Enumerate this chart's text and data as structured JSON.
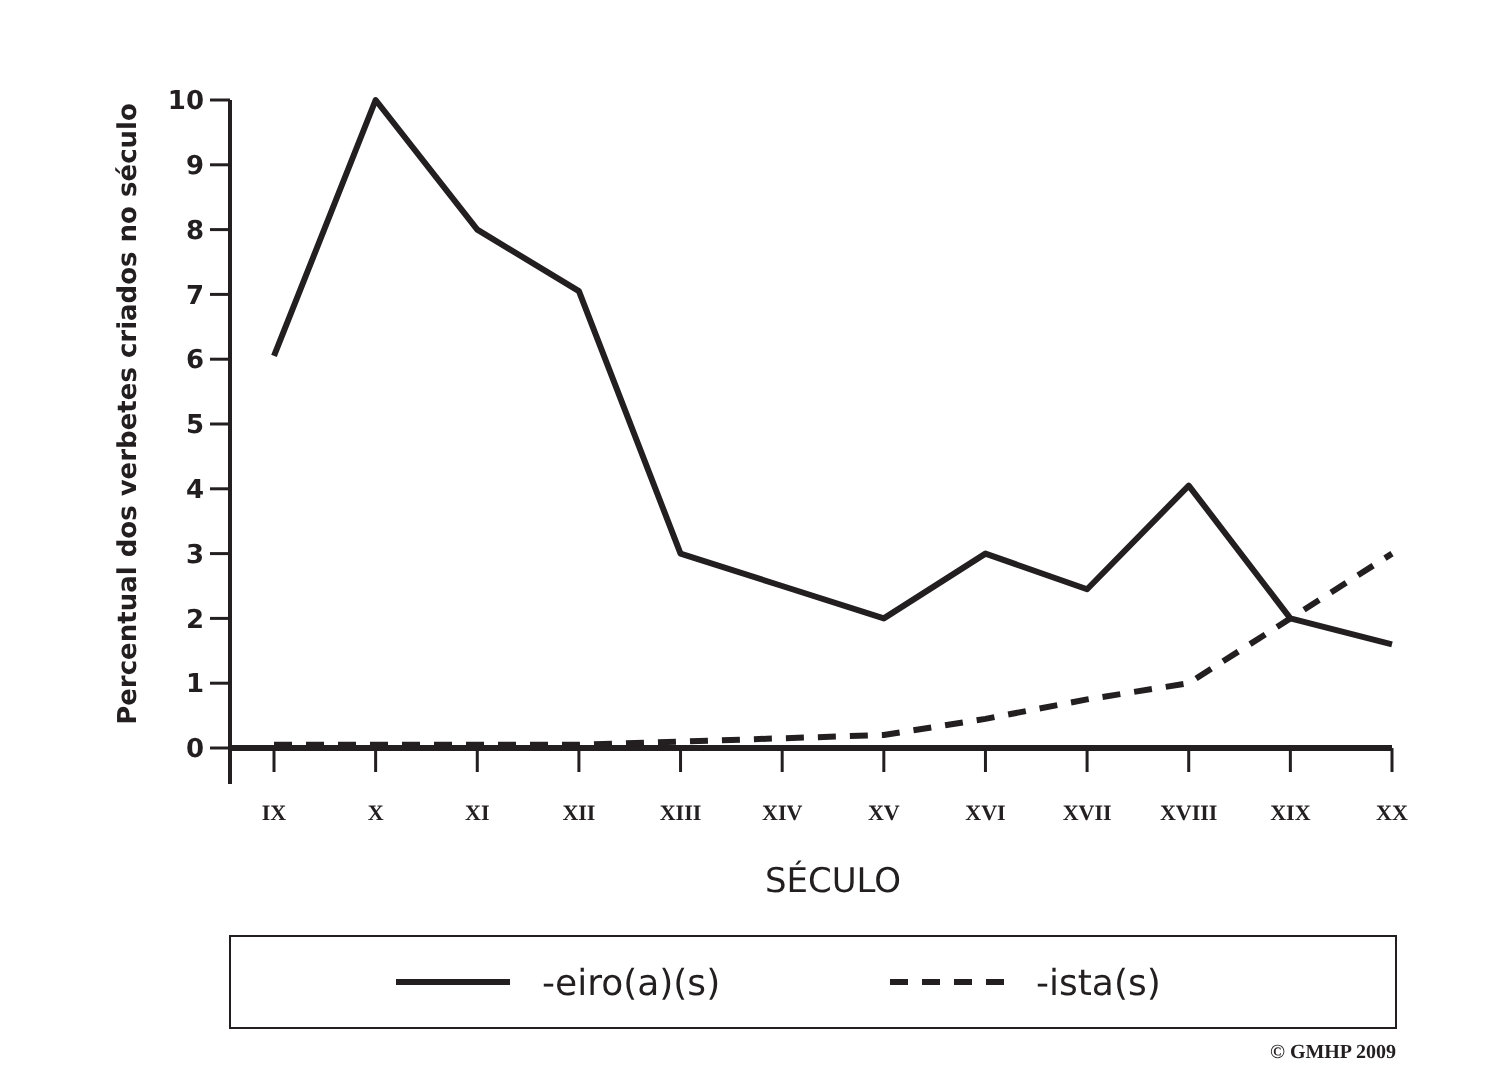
{
  "chart_data": {
    "type": "line",
    "xlabel": "SÉCULO",
    "ylabel": "Percentual dos verbetes criados no século",
    "categories": [
      "IX",
      "X",
      "XI",
      "XII",
      "XIII",
      "XIV",
      "XV",
      "XVI",
      "XVII",
      "XVIII",
      "XIX",
      "XX"
    ],
    "series": [
      {
        "name": "-eiro(a)(s)",
        "color": "#231f20",
        "line_style": "solid",
        "values": [
          6.05,
          10,
          8,
          7.05,
          3,
          2.5,
          2,
          3,
          2.45,
          4.05,
          2,
          1.6
        ]
      },
      {
        "name": "-ista(s)",
        "color": "#231f20",
        "line_style": "dashed",
        "values": [
          0.05,
          0.05,
          0.05,
          0.05,
          0.1,
          0.15,
          0.2,
          0.45,
          0.75,
          1,
          2,
          3
        ]
      }
    ],
    "ylim": [
      0,
      10
    ],
    "yticks": [
      0,
      1,
      2,
      3,
      4,
      5,
      6,
      7,
      8,
      9,
      10
    ],
    "grid": false,
    "legend": "bottom",
    "marker": "none",
    "annotations": [
      "© GMHP 2009"
    ]
  }
}
